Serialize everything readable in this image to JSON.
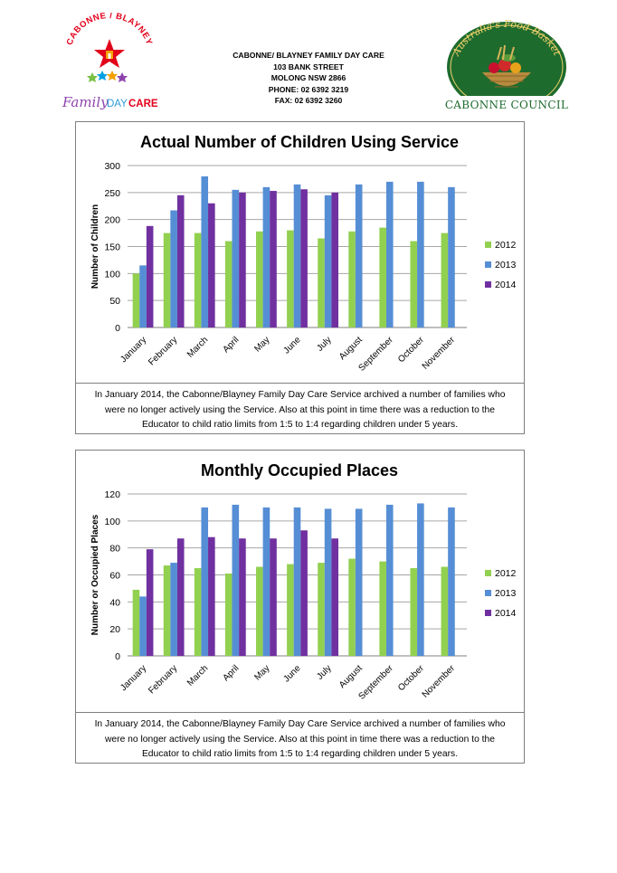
{
  "header": {
    "org_logo": {
      "arc_text": "CABONNE / BLAYNEY",
      "name_family": "Family",
      "name_day": "DAY",
      "name_care": "CARE"
    },
    "address_lines": [
      "CABONNE/ BLAYNEY FAMILY DAY CARE",
      "103 BANK STREET",
      "MOLONG NSW 2866",
      "PHONE: 02 6392 3219",
      "FAX: 02 6392 3260"
    ],
    "council_logo": {
      "arc_text": "Australia's Food Basket",
      "name": "CABONNE COUNCIL"
    }
  },
  "colors": {
    "s2012": "#92d050",
    "s2013": "#558ed5",
    "s2014": "#7030a0",
    "grid": "#a6a6a6",
    "border": "#7f7f7f"
  },
  "chart_data": [
    {
      "type": "bar",
      "title": "Actual Number of Children Using Service",
      "xlabel": "",
      "ylabel": "Number of Children",
      "categories": [
        "January",
        "February",
        "March",
        "April",
        "May",
        "June",
        "July",
        "August",
        "September",
        "October",
        "November"
      ],
      "ylim": [
        0,
        300
      ],
      "yticks": [
        0,
        50,
        100,
        150,
        200,
        250,
        300
      ],
      "legend_position": "right",
      "grid": true,
      "series": [
        {
          "name": "2012",
          "values": [
            100,
            175,
            175,
            160,
            178,
            180,
            165,
            178,
            185,
            160,
            175
          ]
        },
        {
          "name": "2013",
          "values": [
            115,
            217,
            280,
            255,
            260,
            265,
            245,
            265,
            270,
            270,
            260
          ]
        },
        {
          "name": "2014",
          "values": [
            188,
            245,
            230,
            250,
            253,
            256,
            250,
            null,
            null,
            null,
            null
          ]
        }
      ],
      "caption_lines": [
        "In January 2014, the Cabonne/Blayney Family Day Care Service archived a number of families who",
        "were no longer actively using the Service. Also at this point in time there was a reduction to the",
        "Educator to child ratio limits from 1:5 to 1:4 regarding children under 5 years."
      ]
    },
    {
      "type": "bar",
      "title": "Monthly Occupied Places",
      "xlabel": "",
      "ylabel": "Number or Occupied Places",
      "categories": [
        "January",
        "February",
        "March",
        "April",
        "May",
        "June",
        "July",
        "August",
        "September",
        "October",
        "November"
      ],
      "ylim": [
        0,
        120
      ],
      "yticks": [
        0,
        20,
        40,
        60,
        80,
        100,
        120
      ],
      "legend_position": "right",
      "grid": true,
      "series": [
        {
          "name": "2012",
          "values": [
            49,
            67,
            65,
            61,
            66,
            68,
            69,
            72,
            70,
            65,
            66
          ]
        },
        {
          "name": "2013",
          "values": [
            44,
            69,
            110,
            112,
            110,
            110,
            109,
            109,
            112,
            113,
            110
          ]
        },
        {
          "name": "2014",
          "values": [
            79,
            87,
            88,
            87,
            87,
            93,
            87,
            null,
            null,
            null,
            null
          ]
        }
      ],
      "caption_lines": [
        "In January 2014, the Cabonne/Blayney Family Day Care Service archived a number of families who",
        "were no longer actively using the Service. Also at this point in time there was a reduction to the",
        "Educator to child ratio limits from 1:5 to 1:4 regarding children under 5 years."
      ]
    }
  ]
}
